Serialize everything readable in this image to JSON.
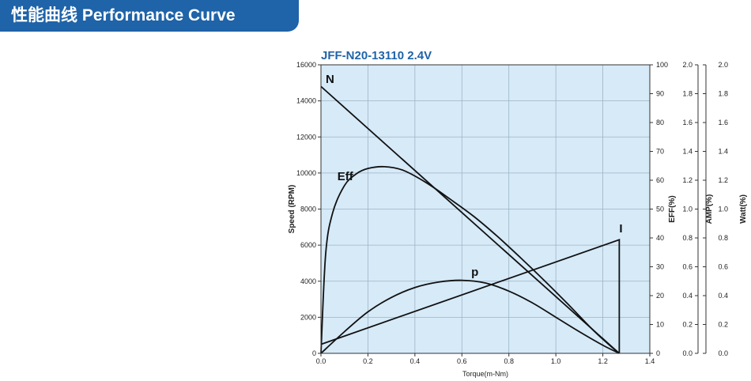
{
  "header": {
    "title": "性能曲线 Performance Curve"
  },
  "chart_data": {
    "type": "line",
    "title": "JFF-N20-13110   2.4V",
    "xlabel": "Torque(m-Nm)",
    "xlim": [
      0,
      1.4
    ],
    "x_ticks": [
      "0.0",
      "0.2",
      "0.4",
      "0.6",
      "0.8",
      "1.0",
      "1.2",
      "1.4"
    ],
    "grid": true,
    "background": "#d6eaf8",
    "axes": [
      {
        "id": "speed",
        "label": "Speed (RPM)",
        "position": "left",
        "range": [
          0,
          16000
        ],
        "ticks": [
          "0",
          "2000",
          "4000",
          "6000",
          "8000",
          "10000",
          "12000",
          "14000",
          "16000"
        ]
      },
      {
        "id": "eff",
        "label": "EFF(%)",
        "position": "right",
        "range": [
          0,
          100
        ],
        "ticks": [
          "0",
          "10",
          "20",
          "30",
          "40",
          "50",
          "60",
          "70",
          "80",
          "90",
          "100"
        ]
      },
      {
        "id": "amp",
        "label": "AMP(%)",
        "position": "right",
        "range": [
          0,
          2.0
        ],
        "ticks": [
          "0.0",
          "0.2",
          "0.4",
          "0.6",
          "0.8",
          "1.0",
          "1.2",
          "1.4",
          "1.6",
          "1.8",
          "2.0"
        ]
      },
      {
        "id": "watt",
        "label": "Watt(%)",
        "position": "right",
        "range": [
          0,
          2.0
        ],
        "ticks": [
          "0.0",
          "0.2",
          "0.4",
          "0.6",
          "0.8",
          "1.0",
          "1.2",
          "1.4",
          "1.6",
          "1.8",
          "2.0"
        ]
      }
    ],
    "series": [
      {
        "name": "N",
        "axis": "speed",
        "label_at": [
          0.02,
          15000
        ],
        "x": [
          0,
          1.27
        ],
        "y": [
          14800,
          0
        ]
      },
      {
        "name": "Eff",
        "axis": "speed",
        "label_at": [
          0.07,
          9600
        ],
        "x": [
          0,
          0.02,
          0.05,
          0.1,
          0.15,
          0.2,
          0.27,
          0.35,
          0.45,
          0.55,
          0.65,
          0.75,
          0.85,
          0.95,
          1.05,
          1.15,
          1.22,
          1.27
        ],
        "y": [
          0,
          5500,
          7800,
          9300,
          9950,
          10250,
          10350,
          10150,
          9450,
          8550,
          7600,
          6500,
          5300,
          4050,
          2750,
          1400,
          550,
          0
        ]
      },
      {
        "name": "I",
        "axis": "speed",
        "label_at": [
          1.27,
          6700
        ],
        "x": [
          0,
          1.27,
          1.27
        ],
        "y": [
          500,
          6300,
          0
        ]
      },
      {
        "name": "p",
        "axis": "speed",
        "label_at": [
          0.64,
          4300
        ],
        "x": [
          0,
          0.1,
          0.2,
          0.3,
          0.4,
          0.5,
          0.6,
          0.7,
          0.8,
          0.9,
          1.0,
          1.1,
          1.2,
          1.27
        ],
        "y": [
          0,
          1200,
          2300,
          3100,
          3650,
          3950,
          4050,
          3900,
          3450,
          2800,
          2000,
          1200,
          450,
          0
        ]
      }
    ]
  }
}
